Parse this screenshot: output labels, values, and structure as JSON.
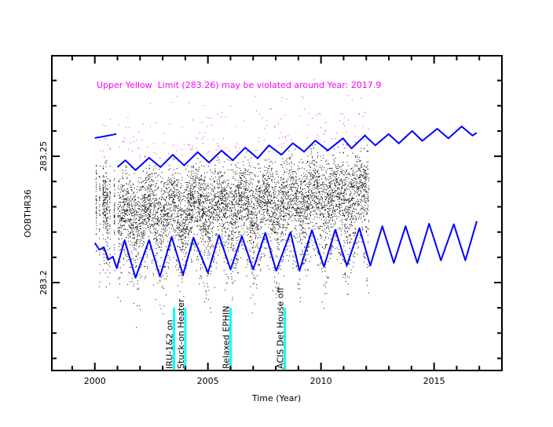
{
  "chart_data": {
    "type": "scatter",
    "title": "",
    "xlabel": "Time (Year)",
    "ylabel": "OOBTHR36",
    "xlim": [
      1998.1,
      2018.0
    ],
    "ylim": [
      283.1652,
      283.2898
    ],
    "x_ticks_major": [
      2000,
      2005,
      2010,
      2015
    ],
    "x_tick_labels": [
      "2000",
      "2005",
      "2010",
      "2015"
    ],
    "x_ticks_minor_step": 1,
    "y_ticks_major": [
      283.2,
      283.25
    ],
    "y_tick_labels": [
      "283.2",
      "283.25"
    ],
    "y_ticks_minor_step": 0.01,
    "grid": false,
    "colors": {
      "data": "#000000",
      "outlier": "#ff00ff",
      "envelope": "#0000ff",
      "event": "#00ffff",
      "annotation": "#ff00ff"
    },
    "annotation": "Upper Yellow  Limit (283.26) may be violated around Year: 2017.9",
    "events": [
      {
        "year": 2003.5,
        "label": "IRU-1&2 on"
      },
      {
        "year": 2004.0,
        "label": "Stuck-on Heater"
      },
      {
        "year": 2006.0,
        "label": "Relaxed EPHIN"
      },
      {
        "year": 2008.4,
        "label": "ACIS Det House off"
      }
    ],
    "scatter_model": {
      "x_range": [
        2000.0,
        2012.1
      ],
      "description": "daily samples between envelopes; points above upper envelope drawn magenta",
      "n_points": 7000
    },
    "series": [
      {
        "name": "upper-envelope-early",
        "x": [
          2000.0,
          2000.95
        ],
        "y": [
          283.2572,
          283.2588
        ]
      },
      {
        "name": "upper-envelope",
        "x": [
          2001.0,
          2001.35,
          2001.8,
          2002.4,
          2002.9,
          2003.45,
          2003.95,
          2004.55,
          2005.05,
          2005.6,
          2006.1,
          2006.65,
          2007.2,
          2007.7,
          2008.25,
          2008.75,
          2009.25,
          2009.75,
          2010.3,
          2010.97,
          2011.35,
          2011.94,
          2012.4,
          2012.99,
          2013.44,
          2014.03,
          2014.48,
          2015.14,
          2015.63,
          2016.22,
          2016.7,
          2016.88
        ],
        "y": [
          283.2457,
          283.2484,
          283.2445,
          283.2494,
          283.2457,
          283.2506,
          283.2464,
          283.2516,
          283.2475,
          283.2523,
          283.2484,
          283.2534,
          283.2492,
          283.2543,
          283.2506,
          283.2552,
          283.2518,
          283.2562,
          283.2523,
          283.2571,
          283.2531,
          283.2582,
          283.2543,
          283.2588,
          283.2551,
          283.26,
          283.2561,
          283.2609,
          283.2571,
          283.2618,
          283.2582,
          283.2593
        ]
      },
      {
        "name": "lower-envelope",
        "x": [
          2000.0,
          2000.2,
          2000.4,
          2000.6,
          2000.8,
          2000.97,
          2001.32,
          2001.8,
          2002.4,
          2002.88,
          2003.4,
          2003.9,
          2004.36,
          2005.0,
          2005.49,
          2006.0,
          2006.5,
          2007.0,
          2007.54,
          2008.02,
          2008.65,
          2009.05,
          2009.6,
          2010.13,
          2010.63,
          2011.14,
          2011.7,
          2012.18,
          2012.71,
          2013.22,
          2013.74,
          2014.26,
          2014.78,
          2015.3,
          2015.87,
          2016.38,
          2016.89
        ],
        "y": [
          283.2157,
          283.213,
          283.214,
          283.2091,
          283.2103,
          283.2057,
          283.2168,
          283.2019,
          283.2168,
          283.2024,
          283.2181,
          283.2031,
          283.2178,
          283.2039,
          283.2188,
          283.2052,
          283.2184,
          283.2052,
          283.2197,
          283.2047,
          283.2199,
          283.2047,
          283.2208,
          283.2062,
          283.2209,
          283.2067,
          283.2215,
          283.2067,
          283.2223,
          283.2078,
          283.2223,
          283.2078,
          283.2233,
          283.2088,
          283.2231,
          283.2088,
          283.2243
        ]
      }
    ]
  }
}
